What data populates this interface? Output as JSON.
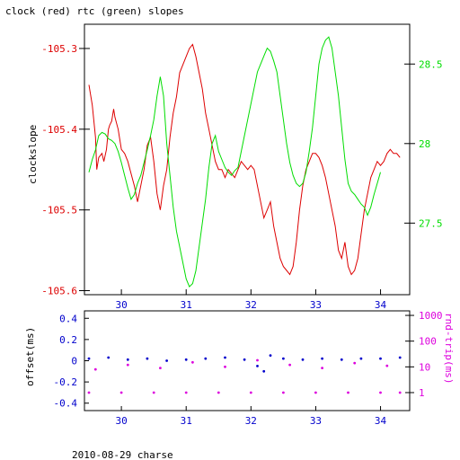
{
  "title": "clock (red) rtc (green) slopes",
  "footer": "2010-08-29 charse",
  "colors": {
    "clock": "#dd0000",
    "rtc": "#00dd00",
    "offset": "#0000cc",
    "rndtrip": "#dd00dd",
    "xtick": "#0000cc",
    "axis": "#000000"
  },
  "chart_data": [
    {
      "type": "line",
      "title": "clock (red) rtc (green) slopes",
      "ylabel": "clockslope",
      "x_ticks": [
        "30",
        "31",
        "32",
        "33",
        "34"
      ],
      "xlim": [
        29.43,
        34.45
      ],
      "ylim": [
        -105.605,
        -105.27
      ],
      "y_ticks": [
        "-105.3",
        "-105.4",
        "-105.5",
        "-105.6"
      ],
      "y_right_ticks": [
        "28.5",
        "28",
        "27.5"
      ],
      "y_right_lim": [
        27.05,
        28.75
      ],
      "series": [
        {
          "name": "clock",
          "axis": "left",
          "points": [
            [
              29.5,
              -105.345
            ],
            [
              29.55,
              -105.37
            ],
            [
              29.6,
              -105.41
            ],
            [
              29.62,
              -105.45
            ],
            [
              29.65,
              -105.435
            ],
            [
              29.7,
              -105.43
            ],
            [
              29.73,
              -105.44
            ],
            [
              29.77,
              -105.425
            ],
            [
              29.8,
              -105.4
            ],
            [
              29.82,
              -105.395
            ],
            [
              29.85,
              -105.39
            ],
            [
              29.88,
              -105.375
            ],
            [
              29.9,
              -105.385
            ],
            [
              29.95,
              -105.4
            ],
            [
              30.0,
              -105.425
            ],
            [
              30.05,
              -105.43
            ],
            [
              30.1,
              -105.44
            ],
            [
              30.15,
              -105.455
            ],
            [
              30.2,
              -105.47
            ],
            [
              30.25,
              -105.49
            ],
            [
              30.3,
              -105.47
            ],
            [
              30.35,
              -105.45
            ],
            [
              30.4,
              -105.42
            ],
            [
              30.45,
              -105.41
            ],
            [
              30.5,
              -105.44
            ],
            [
              30.55,
              -105.48
            ],
            [
              30.6,
              -105.5
            ],
            [
              30.65,
              -105.47
            ],
            [
              30.7,
              -105.45
            ],
            [
              30.75,
              -105.41
            ],
            [
              30.8,
              -105.38
            ],
            [
              30.85,
              -105.36
            ],
            [
              30.9,
              -105.33
            ],
            [
              30.95,
              -105.32
            ],
            [
              31.0,
              -105.31
            ],
            [
              31.05,
              -105.3
            ],
            [
              31.1,
              -105.295
            ],
            [
              31.15,
              -105.31
            ],
            [
              31.2,
              -105.33
            ],
            [
              31.25,
              -105.35
            ],
            [
              31.3,
              -105.38
            ],
            [
              31.35,
              -105.4
            ],
            [
              31.4,
              -105.42
            ],
            [
              31.45,
              -105.44
            ],
            [
              31.5,
              -105.45
            ],
            [
              31.55,
              -105.45
            ],
            [
              31.6,
              -105.46
            ],
            [
              31.65,
              -105.45
            ],
            [
              31.7,
              -105.455
            ],
            [
              31.75,
              -105.46
            ],
            [
              31.8,
              -105.45
            ],
            [
              31.85,
              -105.44
            ],
            [
              31.9,
              -105.445
            ],
            [
              31.95,
              -105.45
            ],
            [
              32.0,
              -105.445
            ],
            [
              32.05,
              -105.45
            ],
            [
              32.1,
              -105.47
            ],
            [
              32.15,
              -105.49
            ],
            [
              32.2,
              -105.51
            ],
            [
              32.25,
              -105.5
            ],
            [
              32.3,
              -105.49
            ],
            [
              32.35,
              -105.52
            ],
            [
              32.4,
              -105.54
            ],
            [
              32.45,
              -105.56
            ],
            [
              32.5,
              -105.57
            ],
            [
              32.55,
              -105.575
            ],
            [
              32.6,
              -105.58
            ],
            [
              32.65,
              -105.57
            ],
            [
              32.7,
              -105.54
            ],
            [
              32.75,
              -105.5
            ],
            [
              32.8,
              -105.47
            ],
            [
              32.85,
              -105.45
            ],
            [
              32.9,
              -105.44
            ],
            [
              32.95,
              -105.43
            ],
            [
              33.0,
              -105.43
            ],
            [
              33.05,
              -105.435
            ],
            [
              33.1,
              -105.445
            ],
            [
              33.15,
              -105.46
            ],
            [
              33.2,
              -105.48
            ],
            [
              33.25,
              -105.5
            ],
            [
              33.3,
              -105.52
            ],
            [
              33.35,
              -105.55
            ],
            [
              33.4,
              -105.56
            ],
            [
              33.45,
              -105.54
            ],
            [
              33.5,
              -105.57
            ],
            [
              33.55,
              -105.58
            ],
            [
              33.6,
              -105.575
            ],
            [
              33.65,
              -105.56
            ],
            [
              33.7,
              -105.53
            ],
            [
              33.75,
              -105.5
            ],
            [
              33.8,
              -105.48
            ],
            [
              33.85,
              -105.46
            ],
            [
              33.9,
              -105.45
            ],
            [
              33.95,
              -105.44
            ],
            [
              34.0,
              -105.445
            ],
            [
              34.05,
              -105.44
            ],
            [
              34.1,
              -105.43
            ],
            [
              34.15,
              -105.425
            ],
            [
              34.2,
              -105.43
            ],
            [
              34.25,
              -105.43
            ],
            [
              34.3,
              -105.435
            ]
          ]
        },
        {
          "name": "rtc",
          "axis": "right",
          "points": [
            [
              29.5,
              27.82
            ],
            [
              29.55,
              27.9
            ],
            [
              29.6,
              27.96
            ],
            [
              29.65,
              28.05
            ],
            [
              29.7,
              28.07
            ],
            [
              29.75,
              28.06
            ],
            [
              29.8,
              28.03
            ],
            [
              29.85,
              28.02
            ],
            [
              29.9,
              28.0
            ],
            [
              29.95,
              27.95
            ],
            [
              30.0,
              27.88
            ],
            [
              30.05,
              27.8
            ],
            [
              30.1,
              27.72
            ],
            [
              30.15,
              27.65
            ],
            [
              30.2,
              27.68
            ],
            [
              30.25,
              27.75
            ],
            [
              30.3,
              27.8
            ],
            [
              30.35,
              27.88
            ],
            [
              30.4,
              27.96
            ],
            [
              30.45,
              28.05
            ],
            [
              30.5,
              28.15
            ],
            [
              30.55,
              28.3
            ],
            [
              30.6,
              28.42
            ],
            [
              30.65,
              28.3
            ],
            [
              30.7,
              28.0
            ],
            [
              30.75,
              27.8
            ],
            [
              30.8,
              27.6
            ],
            [
              30.85,
              27.45
            ],
            [
              30.9,
              27.35
            ],
            [
              30.95,
              27.25
            ],
            [
              31.0,
              27.15
            ],
            [
              31.05,
              27.1
            ],
            [
              31.1,
              27.12
            ],
            [
              31.15,
              27.2
            ],
            [
              31.2,
              27.35
            ],
            [
              31.25,
              27.5
            ],
            [
              31.3,
              27.65
            ],
            [
              31.35,
              27.85
            ],
            [
              31.4,
              28.0
            ],
            [
              31.45,
              28.05
            ],
            [
              31.5,
              27.95
            ],
            [
              31.55,
              27.9
            ],
            [
              31.6,
              27.85
            ],
            [
              31.65,
              27.82
            ],
            [
              31.7,
              27.8
            ],
            [
              31.75,
              27.83
            ],
            [
              31.8,
              27.85
            ],
            [
              31.85,
              27.95
            ],
            [
              31.9,
              28.05
            ],
            [
              31.95,
              28.15
            ],
            [
              32.0,
              28.25
            ],
            [
              32.05,
              28.35
            ],
            [
              32.1,
              28.45
            ],
            [
              32.15,
              28.5
            ],
            [
              32.2,
              28.55
            ],
            [
              32.25,
              28.6
            ],
            [
              32.3,
              28.58
            ],
            [
              32.35,
              28.52
            ],
            [
              32.4,
              28.45
            ],
            [
              32.45,
              28.3
            ],
            [
              32.5,
              28.15
            ],
            [
              32.55,
              28.0
            ],
            [
              32.6,
              27.88
            ],
            [
              32.65,
              27.8
            ],
            [
              32.7,
              27.75
            ],
            [
              32.75,
              27.73
            ],
            [
              32.8,
              27.75
            ],
            [
              32.85,
              27.82
            ],
            [
              32.9,
              27.95
            ],
            [
              32.95,
              28.1
            ],
            [
              33.0,
              28.3
            ],
            [
              33.05,
              28.5
            ],
            [
              33.1,
              28.6
            ],
            [
              33.15,
              28.65
            ],
            [
              33.2,
              28.67
            ],
            [
              33.25,
              28.6
            ],
            [
              33.3,
              28.45
            ],
            [
              33.35,
              28.3
            ],
            [
              33.4,
              28.1
            ],
            [
              33.45,
              27.9
            ],
            [
              33.5,
              27.75
            ],
            [
              33.55,
              27.7
            ],
            [
              33.6,
              27.68
            ],
            [
              33.65,
              27.65
            ],
            [
              33.7,
              27.62
            ],
            [
              33.75,
              27.6
            ],
            [
              33.8,
              27.55
            ],
            [
              33.85,
              27.6
            ],
            [
              33.9,
              27.68
            ],
            [
              33.95,
              27.75
            ],
            [
              34.0,
              27.82
            ]
          ]
        }
      ]
    },
    {
      "type": "scatter",
      "ylabel": "offset(ms)",
      "y_right_label": "rnd-trip(ms)",
      "x_ticks": [
        "30",
        "31",
        "32",
        "33",
        "34"
      ],
      "xlim": [
        29.43,
        34.45
      ],
      "ylim": [
        -0.47,
        0.47
      ],
      "y_ticks": [
        "0.4",
        "0.2",
        "0",
        "-0.2",
        "-0.4"
      ],
      "y_right_ticks": [
        "1000",
        "100",
        "10",
        "1"
      ],
      "y_right_scale": "log",
      "y_right_lim": [
        0.2,
        1500
      ],
      "series": [
        {
          "name": "offset",
          "axis": "left",
          "points": [
            [
              29.5,
              0.02
            ],
            [
              29.8,
              0.03
            ],
            [
              30.1,
              0.01
            ],
            [
              30.4,
              0.02
            ],
            [
              30.7,
              0.0
            ],
            [
              31.0,
              0.01
            ],
            [
              31.3,
              0.02
            ],
            [
              31.6,
              0.03
            ],
            [
              31.9,
              0.01
            ],
            [
              32.1,
              -0.05
            ],
            [
              32.2,
              -0.1
            ],
            [
              32.3,
              0.05
            ],
            [
              32.5,
              0.02
            ],
            [
              32.8,
              0.01
            ],
            [
              33.1,
              0.02
            ],
            [
              33.4,
              0.01
            ],
            [
              33.7,
              0.02
            ],
            [
              34.0,
              0.02
            ],
            [
              34.3,
              0.03
            ]
          ]
        },
        {
          "name": "rndtrip",
          "axis": "right",
          "points": [
            [
              29.5,
              1.0
            ],
            [
              30.0,
              1.0
            ],
            [
              30.5,
              1.0
            ],
            [
              31.0,
              1.0
            ],
            [
              31.5,
              1.0
            ],
            [
              32.0,
              1.0
            ],
            [
              32.5,
              1.0
            ],
            [
              33.0,
              1.0
            ],
            [
              33.5,
              1.0
            ],
            [
              34.0,
              1.0
            ],
            [
              34.3,
              1.0
            ],
            [
              29.6,
              8.0
            ],
            [
              30.1,
              12.0
            ],
            [
              30.6,
              9.0
            ],
            [
              31.1,
              15.0
            ],
            [
              31.6,
              10.0
            ],
            [
              32.1,
              18.0
            ],
            [
              32.6,
              12.0
            ],
            [
              33.1,
              9.0
            ],
            [
              33.6,
              14.0
            ],
            [
              34.1,
              11.0
            ]
          ]
        }
      ]
    }
  ]
}
